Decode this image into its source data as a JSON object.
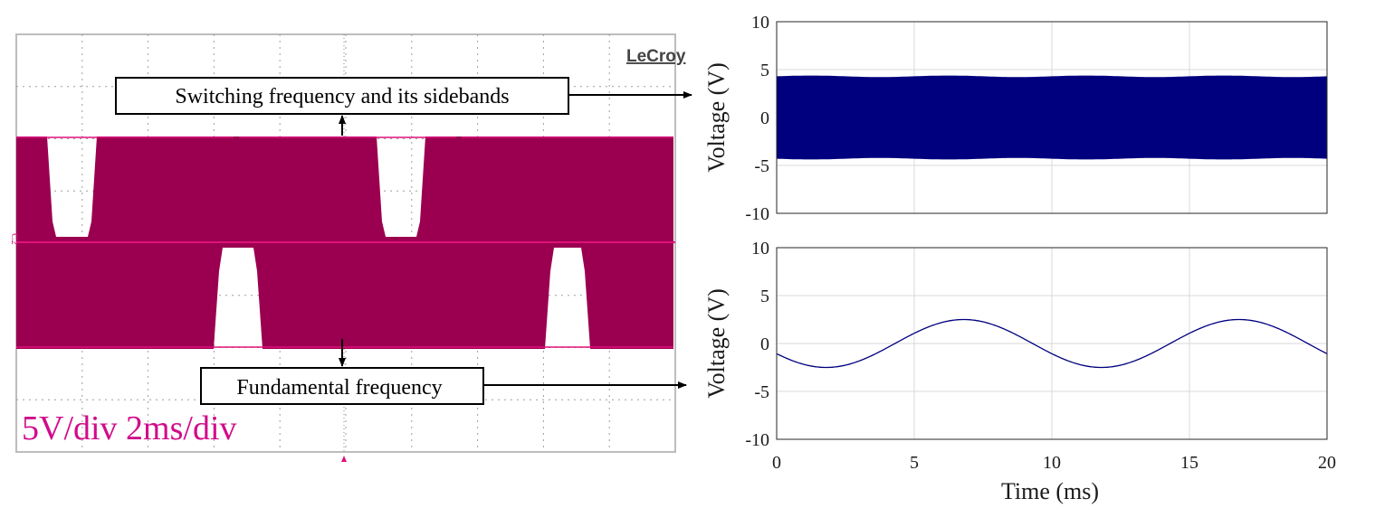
{
  "scope": {
    "brand": "LeCroy",
    "channel_label": "C2",
    "scale_text": "5V/div 2ms/div",
    "trace_color": "#9b0050",
    "accent_color": "#e0107a",
    "callouts": {
      "top": "Switching frequency and its sidebands",
      "bottom": "Fundamental frequency"
    }
  },
  "chart_data": [
    {
      "type": "area",
      "xlim": [
        0,
        20
      ],
      "ylim": [
        -10,
        10
      ],
      "x_ticks": [],
      "y_ticks": [
        10,
        5,
        0,
        -5,
        -10
      ],
      "xlabel": "",
      "ylabel": "Voltage (V)",
      "grid": true,
      "color": "#00007f",
      "envelope_upper": 4.3,
      "envelope_lower": -4.3
    },
    {
      "type": "line",
      "xlim": [
        0,
        20
      ],
      "ylim": [
        -10,
        10
      ],
      "x_ticks": [
        0,
        5,
        10,
        15,
        20
      ],
      "y_ticks": [
        10,
        5,
        0,
        -5,
        -10
      ],
      "xlabel": "Time (ms)",
      "ylabel": "Voltage (V)",
      "grid": true,
      "color": "#00007f",
      "x": [
        0,
        1.8,
        6.8,
        11.8,
        16.8,
        20
      ],
      "y": [
        -1.2,
        -2.5,
        2.5,
        -2.5,
        2.5,
        -1.2
      ]
    }
  ]
}
